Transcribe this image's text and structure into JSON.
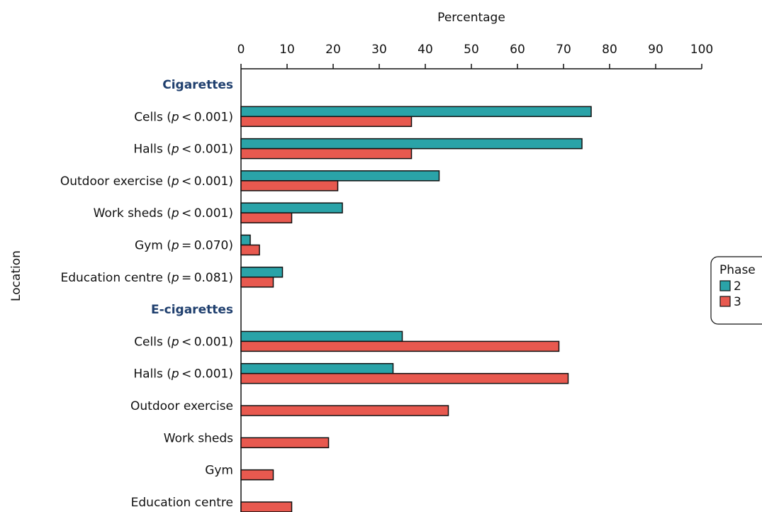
{
  "chart_data": {
    "type": "bar",
    "orientation": "horizontal",
    "xlabel": "Percentage",
    "ylabel": "Location",
    "xlim": [
      0,
      100
    ],
    "xticks": [
      0,
      10,
      20,
      30,
      40,
      50,
      60,
      70,
      80,
      90,
      100
    ],
    "x_axis_position": "top",
    "legend": {
      "title": "Phase",
      "placement": "right",
      "entries": [
        {
          "name": "2",
          "color": "#2aa3a8"
        },
        {
          "name": "3",
          "color": "#e8594f"
        }
      ]
    },
    "groups": [
      {
        "name": "Cigarettes",
        "categories": [
          {
            "label": "Cells",
            "p_op": "<",
            "p_val": "0.001",
            "values": {
              "2": 76,
              "3": 37
            }
          },
          {
            "label": "Halls",
            "p_op": "<",
            "p_val": "0.001",
            "values": {
              "2": 74,
              "3": 37
            }
          },
          {
            "label": "Outdoor exercise",
            "p_op": "<",
            "p_val": "0.001",
            "values": {
              "2": 43,
              "3": 21
            }
          },
          {
            "label": "Work sheds",
            "p_op": "<",
            "p_val": "0.001",
            "values": {
              "2": 22,
              "3": 11
            }
          },
          {
            "label": "Gym",
            "p_op": "=",
            "p_val": "0.070",
            "values": {
              "2": 2,
              "3": 4
            }
          },
          {
            "label": "Education centre",
            "p_op": "=",
            "p_val": "0.081",
            "values": {
              "2": 9,
              "3": 7
            }
          }
        ]
      },
      {
        "name": "E-cigarettes",
        "categories": [
          {
            "label": "Cells",
            "p_op": "<",
            "p_val": "0.001",
            "values": {
              "2": 35,
              "3": 69
            }
          },
          {
            "label": "Halls",
            "p_op": "<",
            "p_val": "0.001",
            "values": {
              "2": 33,
              "3": 71
            }
          },
          {
            "label": "Outdoor exercise",
            "values": {
              "3": 45
            }
          },
          {
            "label": "Work sheds",
            "values": {
              "3": 19
            }
          },
          {
            "label": "Gym",
            "values": {
              "3": 7
            }
          },
          {
            "label": "Education centre",
            "values": {
              "3": 11
            }
          }
        ]
      }
    ]
  }
}
